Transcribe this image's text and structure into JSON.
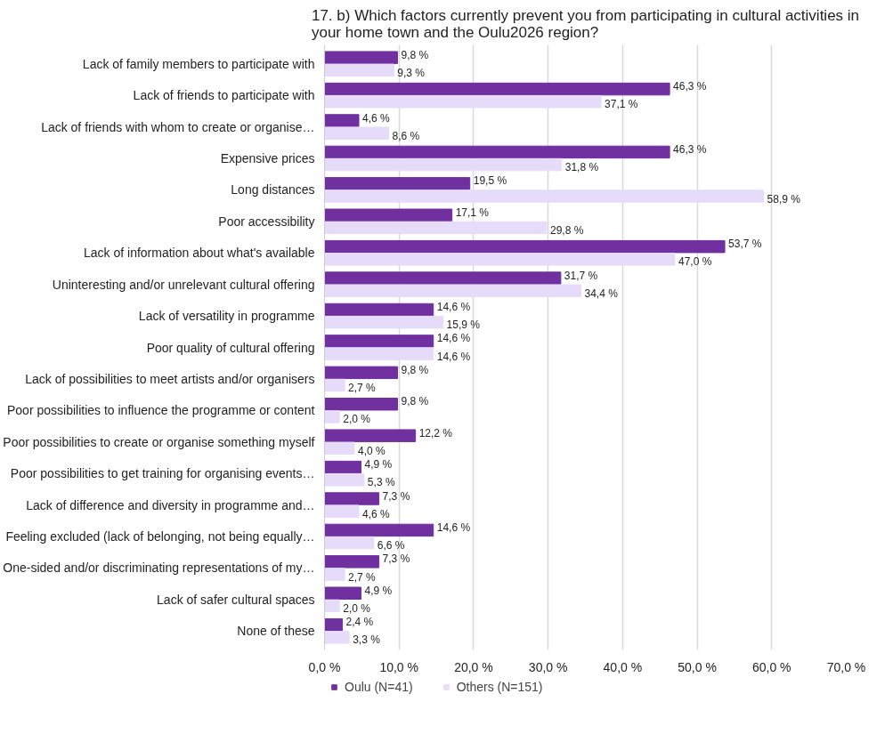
{
  "chart_data": {
    "type": "bar",
    "orientation": "horizontal",
    "title": "17. b) Which factors currently prevent you from participating in cultural activities in your home town and the Oulu2026 region?",
    "categories": [
      "Lack of family members to participate with",
      "Lack of friends to participate with",
      "Lack of friends with whom to create or organise…",
      "Expensive prices",
      "Long distances",
      "Poor accessibility",
      "Lack of information about what's available",
      "Uninteresting and/or unrelevant cultural offering",
      "Lack of versatility in programme",
      "Poor quality of cultural offering",
      "Lack of possibilities to meet artists and/or organisers",
      "Poor possibilities to influence the programme or content",
      "Poor possibilities to create or organise something myself",
      "Poor possibilities to get training for organising events…",
      "Lack of difference and diversity in programme and…",
      "Feeling excluded (lack of belonging, not being equally…",
      "One-sided and/or discriminating representations of my…",
      "Lack of safer cultural spaces",
      "None of these"
    ],
    "series": [
      {
        "name": "Oulu (N=41)",
        "color": "#7030a0",
        "values": [
          9.8,
          46.3,
          4.6,
          46.3,
          19.5,
          17.1,
          53.7,
          31.7,
          14.6,
          14.6,
          9.8,
          9.8,
          12.2,
          4.9,
          7.3,
          14.6,
          7.3,
          4.9,
          2.4
        ],
        "value_labels": [
          "9,8 %",
          "46,3 %",
          "4,6 %",
          "46,3 %",
          "19,5 %",
          "17,1 %",
          "53,7 %",
          "31,7 %",
          "14,6 %",
          "14,6 %",
          "9,8 %",
          "9,8 %",
          "12,2 %",
          "4,9 %",
          "7,3 %",
          "14,6 %",
          "7,3 %",
          "4,9 %",
          "2,4 %"
        ]
      },
      {
        "name": "Others (N=151)",
        "color": "#e6dcfa",
        "values": [
          9.3,
          37.1,
          8.6,
          31.8,
          58.9,
          29.8,
          47.0,
          34.4,
          15.9,
          14.6,
          2.7,
          2.0,
          4.0,
          5.3,
          4.6,
          6.6,
          2.7,
          2.0,
          3.3
        ],
        "value_labels": [
          "9,3 %",
          "37,1 %",
          "8,6 %",
          "31,8 %",
          "58,9 %",
          "29,8 %",
          "47,0 %",
          "34,4 %",
          "15,9 %",
          "14,6 %",
          "2,7 %",
          "2,0 %",
          "4,0 %",
          "5,3 %",
          "4,6 %",
          "6,6 %",
          "2,7 %",
          "2,0 %",
          "3,3 %"
        ]
      }
    ],
    "xlim": [
      0,
      70
    ],
    "xticks": [
      {
        "value": 0,
        "label": "0,0 %"
      },
      {
        "value": 10,
        "label": "10,0 %"
      },
      {
        "value": 20,
        "label": "20,0 %"
      },
      {
        "value": 30,
        "label": "30,0 %"
      },
      {
        "value": 40,
        "label": "40,0 %"
      },
      {
        "value": 50,
        "label": "50,0 %"
      },
      {
        "value": 60,
        "label": "60,0 %"
      },
      {
        "value": 70,
        "label": "70,0 %"
      }
    ],
    "grid": "x",
    "legend": "bottom left"
  }
}
